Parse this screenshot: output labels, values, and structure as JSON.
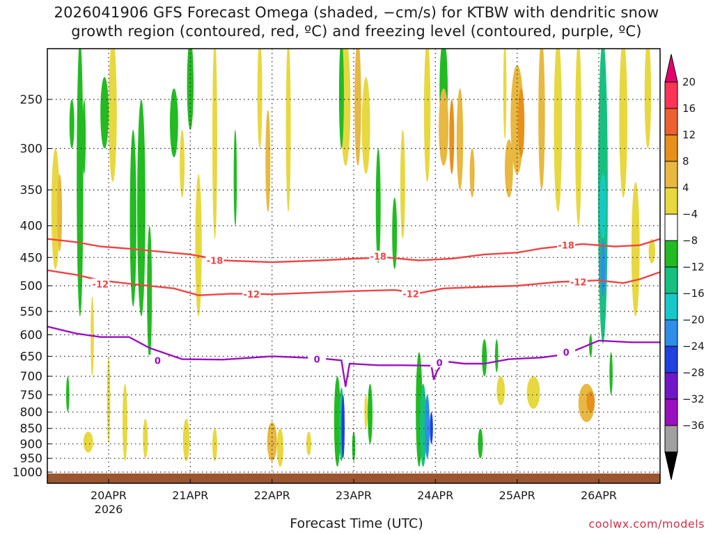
{
  "chart_data": {
    "type": "heatmap",
    "title": "2026041906 GFS Forecast Omega (shaded, −cm/s) for KTBW with dendritic snow",
    "subtitle": "growth region (contoured, red, ºC) and freezing level (contoured, purple, ºC)",
    "xlabel": "Forecast Time (UTC)",
    "ylabel": "",
    "x_ticks": [
      "20APR",
      "21APR",
      "22APR",
      "23APR",
      "24APR",
      "25APR",
      "26APR"
    ],
    "x_year": "2026",
    "x_range_days": [
      -0.75,
      6.75
    ],
    "y_ticks": [
      250,
      300,
      350,
      400,
      450,
      500,
      550,
      600,
      650,
      700,
      750,
      800,
      850,
      900,
      950,
      1000
    ],
    "y_range_hpa": [
      200,
      1012
    ],
    "colorbar": {
      "labels": [
        "20",
        "16",
        "12",
        "8",
        "4",
        "−4",
        "−8",
        "−12",
        "−16",
        "−20",
        "−24",
        "−28",
        "−32",
        "−36"
      ],
      "colors": [
        "#ff3355",
        "#ee6030",
        "#e8901c",
        "#e8b840",
        "#e8d840",
        "#ffffff",
        "#22bb22",
        "#18c080",
        "#18c8c8",
        "#2e8ee8",
        "#2040e0",
        "#7018c8",
        "#9a10c0",
        "#a0a0a0"
      ]
    },
    "contours": [
      {
        "name": "snow-growth -18C",
        "color": "#ee4444",
        "label": "-18",
        "points": [
          [
            -0.75,
            420
          ],
          [
            -0.4,
            425
          ],
          [
            -0.1,
            432
          ],
          [
            0.2,
            435
          ],
          [
            0.6,
            440
          ],
          [
            1.0,
            445
          ],
          [
            1.4,
            455
          ],
          [
            2.0,
            458
          ],
          [
            2.6,
            455
          ],
          [
            3.0,
            452
          ],
          [
            3.4,
            450
          ],
          [
            3.8,
            455
          ],
          [
            4.2,
            452
          ],
          [
            4.6,
            445
          ],
          [
            5.0,
            442
          ],
          [
            5.3,
            435
          ],
          [
            5.8,
            428
          ],
          [
            6.2,
            432
          ],
          [
            6.5,
            430
          ],
          [
            6.75,
            420
          ]
        ],
        "label_at": [
          [
            1.3,
            455
          ],
          [
            3.3,
            448
          ],
          [
            5.6,
            430
          ]
        ]
      },
      {
        "name": "snow-growth -12C",
        "color": "#ee4444",
        "label": "-12",
        "points": [
          [
            -0.75,
            472
          ],
          [
            -0.4,
            480
          ],
          [
            -0.1,
            490
          ],
          [
            0.3,
            497
          ],
          [
            0.8,
            505
          ],
          [
            1.1,
            518
          ],
          [
            1.5,
            515
          ],
          [
            2.0,
            516
          ],
          [
            2.5,
            513
          ],
          [
            3.0,
            510
          ],
          [
            3.5,
            508
          ],
          [
            3.8,
            514
          ],
          [
            4.1,
            505
          ],
          [
            4.6,
            502
          ],
          [
            5.0,
            500
          ],
          [
            5.5,
            493
          ],
          [
            6.0,
            490
          ],
          [
            6.3,
            495
          ],
          [
            6.5,
            488
          ],
          [
            6.75,
            475
          ]
        ],
        "label_at": [
          [
            -0.1,
            497
          ],
          [
            1.75,
            516
          ],
          [
            3.7,
            515
          ],
          [
            5.75,
            493
          ]
        ]
      },
      {
        "name": "freezing-level 0C",
        "color": "#9a10c0",
        "label": "0",
        "points": [
          [
            -0.75,
            582
          ],
          [
            -0.4,
            597
          ],
          [
            -0.1,
            605
          ],
          [
            0.25,
            605
          ],
          [
            0.5,
            630
          ],
          [
            0.9,
            657
          ],
          [
            1.4,
            658
          ],
          [
            2.0,
            650
          ],
          [
            2.6,
            655
          ],
          [
            2.85,
            660
          ],
          [
            2.9,
            727
          ],
          [
            2.95,
            668
          ],
          [
            3.3,
            672
          ],
          [
            3.6,
            672
          ],
          [
            3.95,
            673
          ],
          [
            3.98,
            708
          ],
          [
            4.02,
            687
          ],
          [
            4.1,
            662
          ],
          [
            4.35,
            668
          ],
          [
            4.6,
            668
          ],
          [
            4.9,
            657
          ],
          [
            5.3,
            653
          ],
          [
            5.6,
            645
          ],
          [
            6.0,
            613
          ],
          [
            6.4,
            617
          ],
          [
            6.75,
            617
          ]
        ],
        "label_at": [
          [
            0.6,
            660
          ],
          [
            2.55,
            657
          ],
          [
            4.05,
            665
          ],
          [
            5.6,
            640
          ]
        ]
      }
    ]
  }
}
